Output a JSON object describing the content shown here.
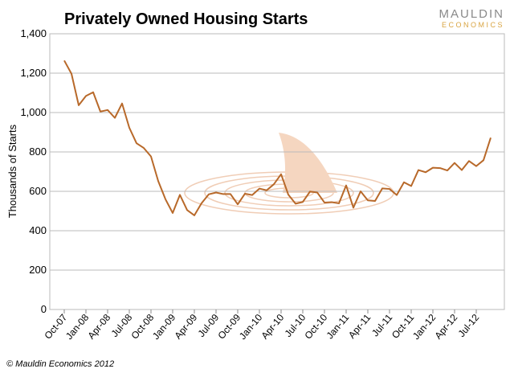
{
  "chart_data": {
    "type": "line",
    "title": "Privately Owned Housing Starts",
    "logo": {
      "name": "MAULDIN",
      "tagline": "ECONOMICS"
    },
    "ylabel": "Thousands of Starts",
    "footer": "© Mauldin Economics 2012",
    "categories": [
      "Oct-07",
      null,
      null,
      "Jan-08",
      null,
      null,
      "Apr-08",
      null,
      null,
      "Jul-08",
      null,
      null,
      "Oct-08",
      null,
      null,
      "Jan-09",
      null,
      null,
      "Apr-09",
      null,
      null,
      "Jul-09",
      null,
      null,
      "Oct-09",
      null,
      null,
      "Jan-10",
      null,
      null,
      "Apr-10",
      null,
      null,
      "Jul-10",
      null,
      null,
      "Oct-10",
      null,
      null,
      "Jan-11",
      null,
      null,
      "Apr-11",
      null,
      null,
      "Jul-11",
      null,
      null,
      "Oct-11",
      null,
      null,
      "Jan-12",
      null,
      null,
      "Apr-12",
      null,
      null,
      "Jul-12",
      null,
      null
    ],
    "series": [
      {
        "name": "Housing Starts",
        "color": "#b8692a",
        "values": [
          1264,
          1197,
          1037,
          1084,
          1103,
          1005,
          1013,
          973,
          1046,
          923,
          844,
          820,
          777,
          652,
          560,
          490,
          582,
          505,
          478,
          540,
          585,
          594,
          586,
          586,
          534,
          588,
          581,
          614,
          605,
          636,
          687,
          583,
          537,
          546,
          599,
          594,
          543,
          545,
          539,
          630,
          517,
          600,
          554,
          551,
          615,
          612,
          581,
          646,
          627,
          708,
          697,
          720,
          718,
          706,
          744,
          708,
          754,
          728,
          758,
          872
        ]
      }
    ],
    "ylim": [
      0,
      1400
    ],
    "yticks": [
      0,
      200,
      400,
      600,
      800,
      {
        "value": 1000,
        "label": "1,000"
      },
      {
        "value": 1200,
        "label": "1,200"
      },
      {
        "value": 1400,
        "label": "1,400"
      }
    ],
    "grid": true
  }
}
